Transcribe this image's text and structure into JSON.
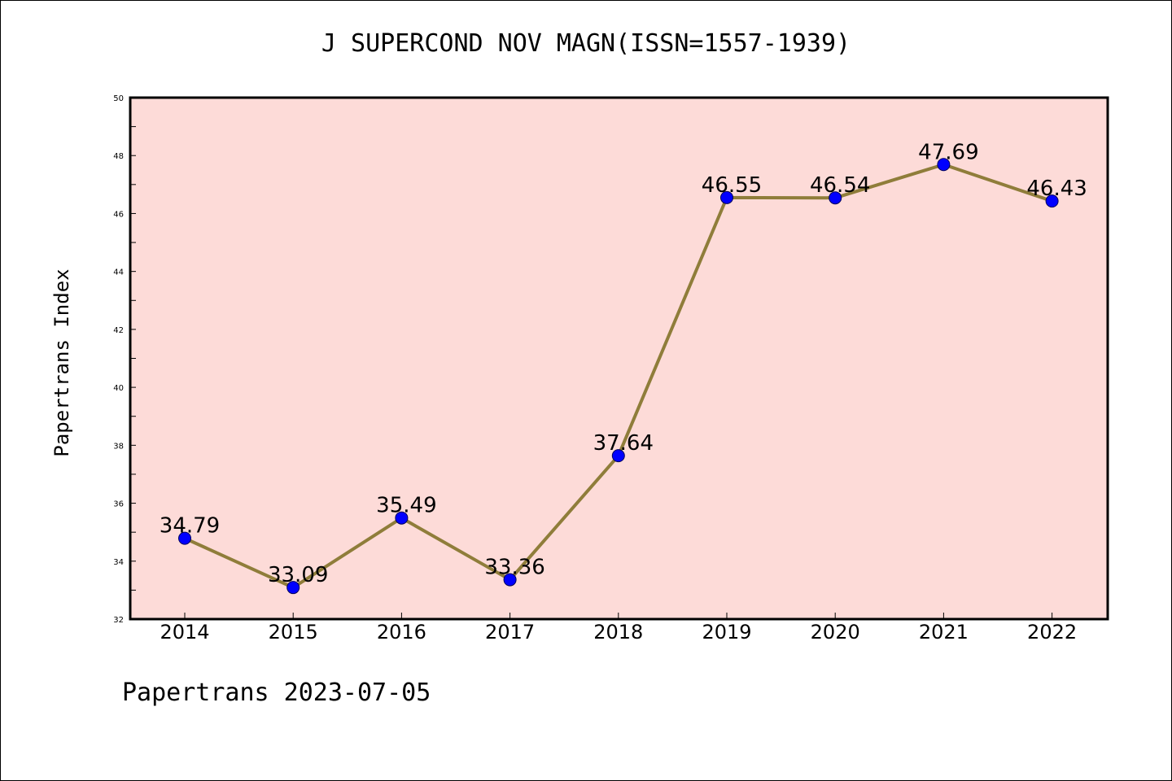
{
  "chart_data": {
    "type": "line",
    "title": "J SUPERCOND NOV MAGN(ISSN=1557-1939)",
    "xlabel": "",
    "ylabel": "Papertrans Index",
    "categories": [
      "2014",
      "2015",
      "2016",
      "2017",
      "2018",
      "2019",
      "2020",
      "2021",
      "2022"
    ],
    "series": [
      {
        "values": [
          34.79,
          33.09,
          35.49,
          33.36,
          37.64,
          46.55,
          46.54,
          47.69,
          46.43
        ],
        "labels": [
          "34.79",
          "33.09",
          "35.49",
          "33.36",
          "37.64",
          "46.55",
          "46.54",
          "47.69",
          "46.43"
        ],
        "line_color": "#8f7d3a",
        "marker_color": "#0000ff"
      }
    ],
    "ylim": [
      32,
      50
    ],
    "yticks": [
      "32",
      "34",
      "36",
      "38",
      "40",
      "42",
      "44",
      "46",
      "48",
      "50"
    ],
    "plot_background": "#fddbd8",
    "grid": false,
    "legend": "none"
  },
  "footer": {
    "note": "Papertrans 2023-07-05"
  }
}
